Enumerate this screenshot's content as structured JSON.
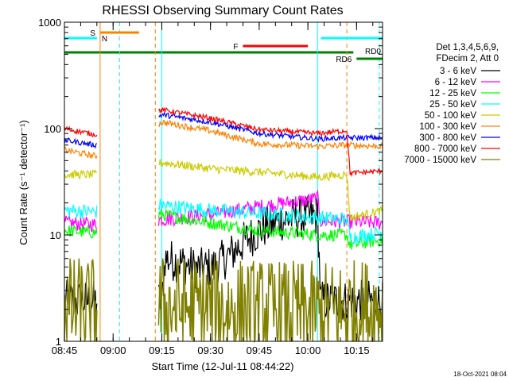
{
  "chart_data": {
    "type": "line",
    "title": "RHESSI Observing Summary Count Rates",
    "xlabel": "Start Time (12-Jul-11 08:44:22)",
    "ylabel": "Count Rate (s⁻¹ detector⁻¹)",
    "ylim": [
      1,
      1000
    ],
    "yscale": "log",
    "yticks": [
      {
        "v": 1,
        "label": "1"
      },
      {
        "v": 10,
        "label": "10"
      },
      {
        "v": 100,
        "label": "100"
      },
      {
        "v": 1000,
        "label": "1000"
      }
    ],
    "xlim": [
      "08:45",
      "10:23"
    ],
    "xticks": [
      "08:45",
      "09:00",
      "09:15",
      "09:30",
      "09:45",
      "10:00",
      "10:15"
    ],
    "grid": false,
    "legend_position": "right",
    "legend_header": [
      "Det 1,3,4,5,6,9,",
      "FDecim 2, Att 0"
    ],
    "timestamp": "18-Oct-2021 08:04",
    "flags": [
      {
        "label": "S",
        "color": "#ff8000",
        "start": "08:56",
        "end": "09:08"
      },
      {
        "label": "N",
        "color": "#00ffff",
        "start": "08:45",
        "end": "08:55"
      },
      {
        "label": "F",
        "color": "#ff0000",
        "start": "09:40",
        "end": "10:00"
      },
      {
        "label": "RD0",
        "color": "#00ffff",
        "start": "10:04",
        "end": "10:23"
      },
      {
        "label": "RD6",
        "color": "#008000",
        "start": "10:15",
        "end": "10:23"
      }
    ],
    "saa_band": {
      "color": "#008000",
      "start": "08:45",
      "end": "10:14"
    },
    "vlines": [
      {
        "time": "08:45",
        "color": "#00ffff",
        "style": "solid"
      },
      {
        "time": "08:56",
        "color": "#ff8000",
        "style": "solid"
      },
      {
        "time": "09:02",
        "color": "#00ffff",
        "style": "dashed"
      },
      {
        "time": "09:13",
        "color": "#ff8000",
        "style": "dashed"
      },
      {
        "time": "09:15",
        "color": "#00ffff",
        "style": "solid"
      },
      {
        "time": "10:03",
        "color": "#00ffff",
        "style": "solid"
      },
      {
        "time": "10:12",
        "color": "#ff8000",
        "style": "dashed"
      },
      {
        "time": "10:22",
        "color": "#00ffff",
        "style": "dashed"
      }
    ],
    "gaps": [
      [
        "08:55",
        "09:14"
      ]
    ],
    "series": [
      {
        "name": "3 - 6 keV",
        "color": "#000000",
        "noise": 0.2,
        "points": [
          [
            "08:45",
            2.4
          ],
          [
            "08:54.5",
            2.4
          ],
          [
            "09:15",
            2.4
          ],
          [
            "09:16",
            6
          ],
          [
            "09:21",
            5.5
          ],
          [
            "09:26",
            4.8
          ],
          [
            "09:31",
            5.0
          ],
          [
            "09:36",
            6.5
          ],
          [
            "09:41",
            9.0
          ],
          [
            "09:46",
            11.5
          ],
          [
            "09:51",
            13.5
          ],
          [
            "09:56",
            14.5
          ],
          [
            "10:01",
            15.0
          ],
          [
            "10:03",
            15.0
          ],
          [
            "10:04",
            2.4
          ],
          [
            "10:23",
            2.4
          ]
        ]
      },
      {
        "name": "6 - 12 keV",
        "color": "#ff00ff",
        "noise": 0.07,
        "points": [
          [
            "08:45",
            13
          ],
          [
            "08:54.5",
            12.5
          ],
          [
            "09:15",
            14
          ],
          [
            "09:30",
            15.5
          ],
          [
            "09:45",
            18.5
          ],
          [
            "10:03",
            22
          ],
          [
            "10:04",
            13.5
          ],
          [
            "10:23",
            13
          ]
        ]
      },
      {
        "name": "12 - 25 keV",
        "color": "#00ff00",
        "noise": 0.06,
        "points": [
          [
            "08:45",
            11
          ],
          [
            "08:54.5",
            10.5
          ],
          [
            "09:15",
            15.5
          ],
          [
            "09:30",
            13
          ],
          [
            "09:45",
            11
          ],
          [
            "10:03",
            10
          ],
          [
            "10:12",
            10
          ],
          [
            "10:13",
            8
          ],
          [
            "10:23",
            9
          ]
        ]
      },
      {
        "name": "25 - 50 keV",
        "color": "#00ffff",
        "noise": 0.07,
        "points": [
          [
            "08:45",
            17
          ],
          [
            "08:54.5",
            16.5
          ],
          [
            "09:15",
            19
          ],
          [
            "09:30",
            17
          ],
          [
            "09:45",
            16
          ],
          [
            "10:03",
            14.5
          ],
          [
            "10:12",
            14
          ],
          [
            "10:13",
            9.5
          ],
          [
            "10:23",
            10.5
          ]
        ]
      },
      {
        "name": "50 - 100 keV",
        "color": "#cccc00",
        "noise": 0.04,
        "points": [
          [
            "08:45",
            37
          ],
          [
            "08:54.5",
            37
          ],
          [
            "09:15",
            48
          ],
          [
            "09:30",
            42
          ],
          [
            "09:45",
            39
          ],
          [
            "10:03",
            35
          ],
          [
            "10:12",
            37
          ],
          [
            "10:13",
            14.5
          ],
          [
            "10:23",
            17
          ]
        ]
      },
      {
        "name": "100 - 300 keV",
        "color": "#ff8000",
        "noise": 0.03,
        "points": [
          [
            "08:45",
            63
          ],
          [
            "08:54.5",
            55
          ],
          [
            "09:15",
            115
          ],
          [
            "09:30",
            95
          ],
          [
            "09:45",
            72
          ],
          [
            "10:03",
            68
          ],
          [
            "10:12",
            70
          ],
          [
            "10:23",
            68
          ]
        ]
      },
      {
        "name": "300 - 800 keV",
        "color": "#0000ff",
        "noise": 0.025,
        "points": [
          [
            "08:45",
            78
          ],
          [
            "08:54.5",
            70
          ],
          [
            "09:15",
            135
          ],
          [
            "09:30",
            115
          ],
          [
            "09:45",
            90
          ],
          [
            "10:03",
            80
          ],
          [
            "10:12",
            82
          ],
          [
            "10:23",
            82
          ]
        ]
      },
      {
        "name": "800 - 7000 keV",
        "color": "#ff0000",
        "noise": 0.025,
        "points": [
          [
            "08:45",
            100
          ],
          [
            "08:54.5",
            88
          ],
          [
            "09:15",
            150
          ],
          [
            "09:30",
            125
          ],
          [
            "09:45",
            98
          ],
          [
            "10:03",
            90
          ],
          [
            "10:12",
            96
          ],
          [
            "10:13",
            38
          ],
          [
            "10:23",
            40
          ]
        ]
      },
      {
        "name": "7000 - 15000 keV",
        "color": "#808000",
        "noise": 0.5,
        "points": [
          [
            "08:45",
            2
          ],
          [
            "08:54.5",
            2
          ],
          [
            "09:15",
            2.1
          ],
          [
            "10:03",
            1.8
          ],
          [
            "10:23",
            2
          ]
        ]
      }
    ]
  }
}
